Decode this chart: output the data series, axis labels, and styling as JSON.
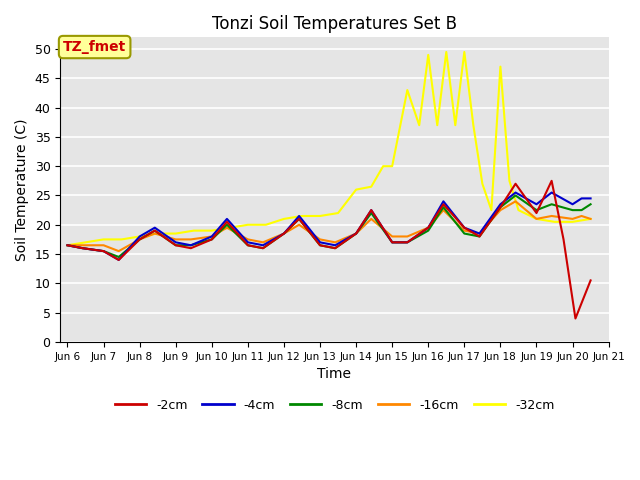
{
  "title": "Tonzi Soil Temperatures Set B",
  "xlabel": "Time",
  "ylabel": "Soil Temperature (C)",
  "ylim": [
    0,
    52
  ],
  "annotation_label": "TZ_fmet",
  "annotation_color": "#cc0000",
  "annotation_bg": "#ffff99",
  "bg_color": "#e5e5e5",
  "grid_color": "#ffffff",
  "legend_entries": [
    "-2cm",
    "-4cm",
    "-8cm",
    "-16cm",
    "-32cm"
  ],
  "legend_colors": [
    "#cc0000",
    "#0000cc",
    "#008800",
    "#ff8800",
    "#ffff00"
  ],
  "x_tick_labels": [
    "Jun 6",
    "Jun 7",
    "Jun 8",
    "Jun 9",
    "Jun 10",
    "Jun 11",
    "Jun 12",
    "Jun 13",
    "Jun 14",
    "Jun 15",
    "Jun 16",
    "Jun 17",
    "Jun 18",
    "Jun 19",
    "Jun 20",
    "Jun 21"
  ],
  "series": {
    "neg2cm": {
      "color": "#cc0000",
      "x": [
        0,
        0.42,
        1,
        1.42,
        2,
        2.42,
        3,
        3.42,
        4,
        4.42,
        5,
        5.42,
        6,
        6.42,
        7,
        7.42,
        8,
        8.42,
        9,
        9.42,
        10,
        10.42,
        11,
        11.42,
        12,
        12.42,
        13,
        13.42,
        13.75,
        14.08,
        14.5
      ],
      "y": [
        16.5,
        16.0,
        15.5,
        14.0,
        17.5,
        19.0,
        16.5,
        16.0,
        17.5,
        20.5,
        16.5,
        16.0,
        18.5,
        21.0,
        16.5,
        16.0,
        18.5,
        22.5,
        17.0,
        17.0,
        19.5,
        23.5,
        19.5,
        18.0,
        23.0,
        27.0,
        22.0,
        27.5,
        17.5,
        4.0,
        10.5
      ]
    },
    "neg4cm": {
      "color": "#0000cc",
      "x": [
        0,
        0.42,
        1,
        1.42,
        2,
        2.42,
        3,
        3.42,
        4,
        4.42,
        5,
        5.42,
        6,
        6.42,
        7,
        7.42,
        8,
        8.42,
        9,
        9.42,
        10,
        10.42,
        11,
        11.42,
        12,
        12.42,
        13,
        13.42,
        14,
        14.25,
        14.5
      ],
      "y": [
        16.5,
        16.0,
        15.5,
        14.0,
        18.0,
        19.5,
        17.0,
        16.5,
        18.0,
        21.0,
        17.0,
        16.5,
        18.5,
        21.5,
        17.0,
        16.5,
        18.5,
        22.5,
        17.0,
        17.0,
        19.5,
        24.0,
        19.5,
        18.5,
        23.5,
        25.5,
        23.5,
        25.5,
        23.5,
        24.5,
        24.5
      ]
    },
    "neg8cm": {
      "color": "#008800",
      "x": [
        0,
        0.42,
        1,
        1.42,
        2,
        2.42,
        3,
        3.42,
        4,
        4.42,
        5,
        5.42,
        6,
        6.42,
        7,
        7.42,
        8,
        8.42,
        9,
        9.42,
        10,
        10.42,
        11,
        11.42,
        12,
        12.42,
        13,
        13.42,
        14,
        14.25,
        14.5
      ],
      "y": [
        16.5,
        16.0,
        15.5,
        14.5,
        17.5,
        19.0,
        16.5,
        16.5,
        17.5,
        20.0,
        16.5,
        16.0,
        18.5,
        21.0,
        16.5,
        16.0,
        18.5,
        22.0,
        17.0,
        17.0,
        19.0,
        23.0,
        18.5,
        18.0,
        23.0,
        25.0,
        22.5,
        23.5,
        22.5,
        22.5,
        23.5
      ]
    },
    "neg16cm": {
      "color": "#ff8800",
      "x": [
        0,
        0.42,
        1,
        1.42,
        2,
        2.42,
        3,
        3.42,
        4,
        4.42,
        5,
        5.42,
        6,
        6.42,
        7,
        7.42,
        8,
        8.42,
        9,
        9.42,
        10,
        10.42,
        11,
        11.42,
        12,
        12.42,
        13,
        13.42,
        14,
        14.25,
        14.5
      ],
      "y": [
        16.5,
        16.5,
        16.5,
        15.5,
        17.5,
        18.5,
        17.5,
        17.5,
        18.0,
        19.5,
        17.5,
        17.0,
        18.5,
        20.0,
        17.5,
        17.0,
        18.5,
        21.0,
        18.0,
        18.0,
        19.5,
        22.5,
        19.0,
        18.5,
        22.5,
        24.0,
        21.0,
        21.5,
        21.0,
        21.5,
        21.0
      ]
    },
    "neg32cm": {
      "color": "#ffff00",
      "x": [
        0,
        0.5,
        1,
        1.5,
        2,
        2.5,
        3,
        3.5,
        4,
        4.5,
        5,
        5.5,
        6,
        6.5,
        7,
        7.5,
        8,
        8.42,
        8.75,
        9,
        9.42,
        9.75,
        10,
        10.25,
        10.5,
        10.75,
        11,
        11.25,
        11.5,
        11.75,
        12,
        12.25,
        12.5,
        13,
        13.5,
        14,
        14.5
      ],
      "y": [
        16.5,
        17.0,
        17.5,
        17.5,
        18.0,
        18.5,
        18.5,
        19.0,
        19.0,
        19.5,
        20.0,
        20.0,
        21.0,
        21.5,
        21.5,
        22.0,
        26.0,
        26.5,
        30.0,
        30.0,
        43.0,
        37.0,
        49.0,
        37.0,
        49.5,
        37.0,
        49.5,
        37.0,
        27.0,
        22.5,
        47.0,
        27.5,
        22.5,
        21.0,
        20.5,
        20.5,
        21.0
      ]
    }
  }
}
